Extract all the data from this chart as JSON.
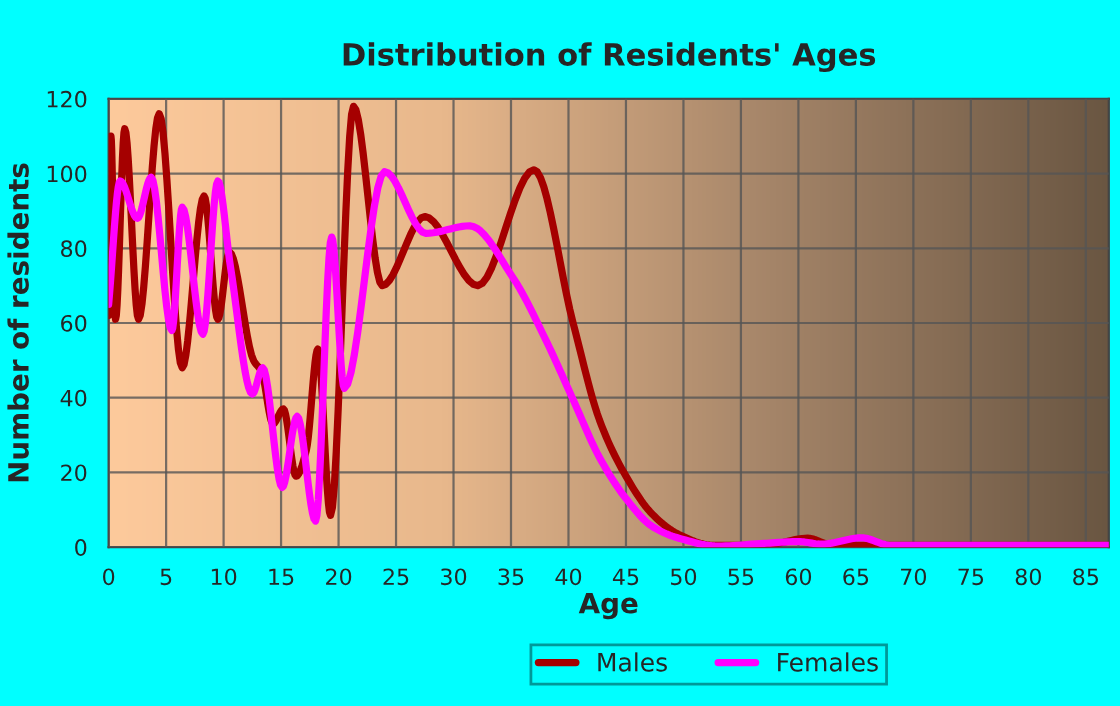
{
  "chart_data": {
    "type": "line",
    "title": "Distribution of Residents' Ages",
    "xlabel": "Age",
    "ylabel": "Number of residents",
    "xlim": [
      0,
      87
    ],
    "ylim": [
      0,
      120
    ],
    "xticks": [
      0,
      5,
      10,
      15,
      20,
      25,
      30,
      35,
      40,
      45,
      50,
      55,
      60,
      65,
      70,
      75,
      80,
      85
    ],
    "yticks": [
      0,
      20,
      40,
      60,
      80,
      100,
      120
    ],
    "grid": true,
    "legend": "bottom",
    "marker": "none",
    "line_style": "solid",
    "series": [
      {
        "name": "Males",
        "color": "#a50000",
        "x": [
          0,
          0.2,
          0.6,
          1.4,
          2.6,
          4.4,
          6.4,
          8.3,
          9.5,
          10.5,
          12.6,
          13.3,
          14.3,
          15.2,
          16.3,
          17.2,
          18.2,
          19.3,
          21.3,
          23.8,
          27.5,
          32.1,
          37,
          40.4,
          42.7,
          45,
          47.3,
          49.6,
          52.5,
          55,
          58,
          60.8,
          63,
          70,
          80,
          87
        ],
        "values": [
          62,
          110,
          61,
          112,
          61,
          116,
          48,
          94,
          61,
          79,
          50,
          47,
          33,
          37,
          19,
          26,
          53,
          8.5,
          118,
          70,
          88.5,
          70,
          101,
          60,
          34,
          19,
          8.8,
          3.4,
          0.5,
          0.5,
          1,
          2.4,
          0.5,
          0.5,
          0.5,
          0.5
        ]
      },
      {
        "name": "Females",
        "color": "#ff00ff",
        "x": [
          0,
          1,
          2.5,
          3.7,
          5.5,
          6.4,
          8.2,
          9.5,
          10.6,
          12.5,
          13.4,
          15.1,
          16.4,
          18,
          19.4,
          20.5,
          24,
          27.6,
          31.4,
          35.2,
          38.1,
          40.4,
          42.7,
          45,
          47.3,
          49.6,
          53,
          57,
          60,
          62,
          65.5,
          68,
          75,
          87
        ],
        "values": [
          65,
          98,
          88,
          99,
          58,
          91,
          57,
          98,
          75,
          41,
          48,
          16,
          35,
          7,
          83,
          42.5,
          100.5,
          84,
          86,
          72,
          55,
          39.5,
          24,
          13,
          5.5,
          2.4,
          0.3,
          1,
          1.5,
          0.8,
          2.5,
          0.5,
          0.5,
          0.5
        ]
      }
    ]
  }
}
